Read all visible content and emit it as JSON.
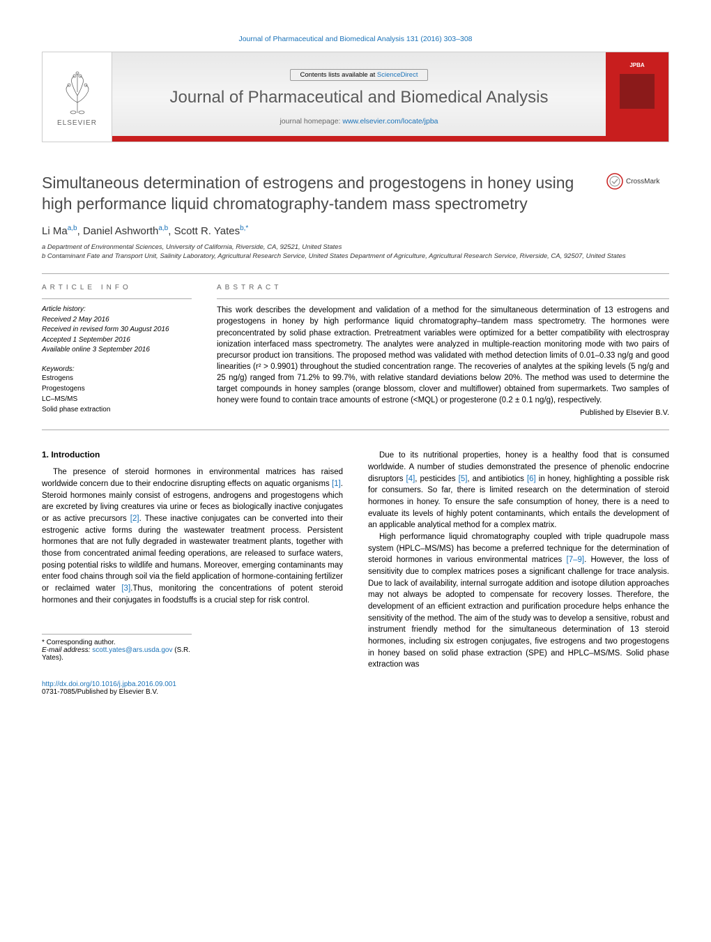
{
  "top_link": {
    "text": "Journal of Pharmaceutical and Biomedical Analysis 131 (2016) 303–308",
    "color": "#1a72b8"
  },
  "banner": {
    "contents_prefix": "Contents lists available at ",
    "contents_link": "ScienceDirect",
    "journal_title": "Journal of Pharmaceutical and Biomedical Analysis",
    "homepage_prefix": "journal homepage: ",
    "homepage_link": "www.elsevier.com/locate/jpba",
    "elsevier_label": "ELSEVIER",
    "jpba_label": "JPBA",
    "stripe_color": "#c81e1e",
    "cover_bg": "#c81e1e"
  },
  "crossmark": {
    "label": "CrossMark"
  },
  "article": {
    "title": "Simultaneous determination of estrogens and progestogens in honey using high performance liquid chromatography-tandem mass spectrometry",
    "authors_html": [
      {
        "name": "Li Ma",
        "sup": "a,b"
      },
      {
        "name": "Daniel Ashworth",
        "sup": "a,b"
      },
      {
        "name": "Scott R. Yates",
        "sup": "b,*",
        "sep": ", "
      }
    ],
    "affiliations": [
      "a Department of Environmental Sciences, University of California, Riverside, CA, 92521, United States",
      "b Contaminant Fate and Transport Unit, Salinity Laboratory, Agricultural Research Service, United States Department of Agriculture, Agricultural Research Service, Riverside, CA, 92507, United States"
    ]
  },
  "article_info": {
    "label": "article info",
    "history_label": "Article history:",
    "history": [
      "Received 2 May 2016",
      "Received in revised form 30 August 2016",
      "Accepted 1 September 2016",
      "Available online 3 September 2016"
    ],
    "keywords_label": "Keywords:",
    "keywords": [
      "Estrogens",
      "Progestogens",
      "LC–MS/MS",
      "Solid phase extraction"
    ]
  },
  "abstract": {
    "label": "abstract",
    "text": "This work describes the development and validation of a method for the simultaneous determination of 13 estrogens and progestogens in honey by high performance liquid chromatography–tandem mass spectrometry. The hormones were preconcentrated by solid phase extraction. Pretreatment variables were optimized for a better compatibility with electrospray ionization interfaced mass spectrometry. The analytes were analyzed in multiple-reaction monitoring mode with two pairs of precursor product ion transitions. The proposed method was validated with method detection limits of 0.01–0.33 ng/g and good linearities (r² > 0.9901) throughout the studied concentration range. The recoveries of analytes at the spiking levels (5 ng/g and 25 ng/g) ranged from 71.2% to 99.7%, with relative standard deviations below 20%. The method was used to determine the target compounds in honey samples (orange blossom, clover and multiflower) obtained from supermarkets. Two samples of honey were found to contain trace amounts of estrone (<MQL) or progesterone (0.2 ± 0.1 ng/g), respectively.",
    "published_by": "Published by Elsevier B.V."
  },
  "introduction": {
    "heading": "1. Introduction",
    "col1": "The presence of steroid hormones in environmental matrices has raised worldwide concern due to their endocrine disrupting effects on aquatic organisms [1]. Steroid hormones mainly consist of estrogens, androgens and progestogens which are excreted by living creatures via urine or feces as biologically inactive conjugates or as active precursors [2]. These inactive conjugates can be converted into their estrogenic active forms during the wastewater treatment process. Persistent hormones that are not fully degraded in wastewater treatment plants, together with those from concentrated animal feeding operations, are released to surface waters, posing potential risks to wildlife and humans. Moreover, emerging contaminants may enter food chains through soil via the field application of hormone-containing fertilizer or reclaimed water [3].Thus, monitoring the concentrations of potent steroid hormones and their conjugates in foodstuffs is a crucial step for risk control.",
    "col2_p1": "Due to its nutritional properties, honey is a healthy food that is consumed worldwide. A number of studies demonstrated the presence of phenolic endocrine disruptors [4], pesticides [5], and antibiotics [6] in honey, highlighting a possible risk for consumers. So far, there is limited research on the determination of steroid hormones in honey. To ensure the safe consumption of honey, there is a need to evaluate its levels of highly potent contaminants, which entails the development of an applicable analytical method for a complex matrix.",
    "col2_p2": "High performance liquid chromatography coupled with triple quadrupole mass system (HPLC–MS/MS) has become a preferred technique for the determination of steroid hormones in various environmental matrices [7–9]. However, the loss of sensitivity due to complex matrices poses a significant challenge for trace analysis. Due to lack of availability, internal surrogate addition and isotope dilution approaches may not always be adopted to compensate for recovery losses. Therefore, the development of an efficient extraction and purification procedure helps enhance the sensitivity of the method. The aim of the study was to develop a sensitive, robust and instrument friendly method for the simultaneous determination of 13 steroid hormones, including six estrogen conjugates, five estrogens and two progestogens in honey based on solid phase extraction (SPE) and HPLC–MS/MS. Solid phase extraction was"
  },
  "footer": {
    "corresponding": "* Corresponding author.",
    "email_label": "E-mail address:",
    "email": "scott.yates@ars.usda.gov",
    "email_suffix": "(S.R. Yates).",
    "doi": "http://dx.doi.org/10.1016/j.jpba.2016.09.001",
    "copyright": "0731-7085/Published by Elsevier B.V."
  },
  "colors": {
    "link": "#1a72b8",
    "text": "#000000",
    "heading": "#4a4a4a",
    "rule": "#aaaaaa",
    "elsevier_orange": "#ff6b00"
  },
  "typography": {
    "body_pt": 11.5,
    "title_pt": 23,
    "journal_title_pt": 24,
    "small_pt": 10,
    "author_pt": 15
  }
}
